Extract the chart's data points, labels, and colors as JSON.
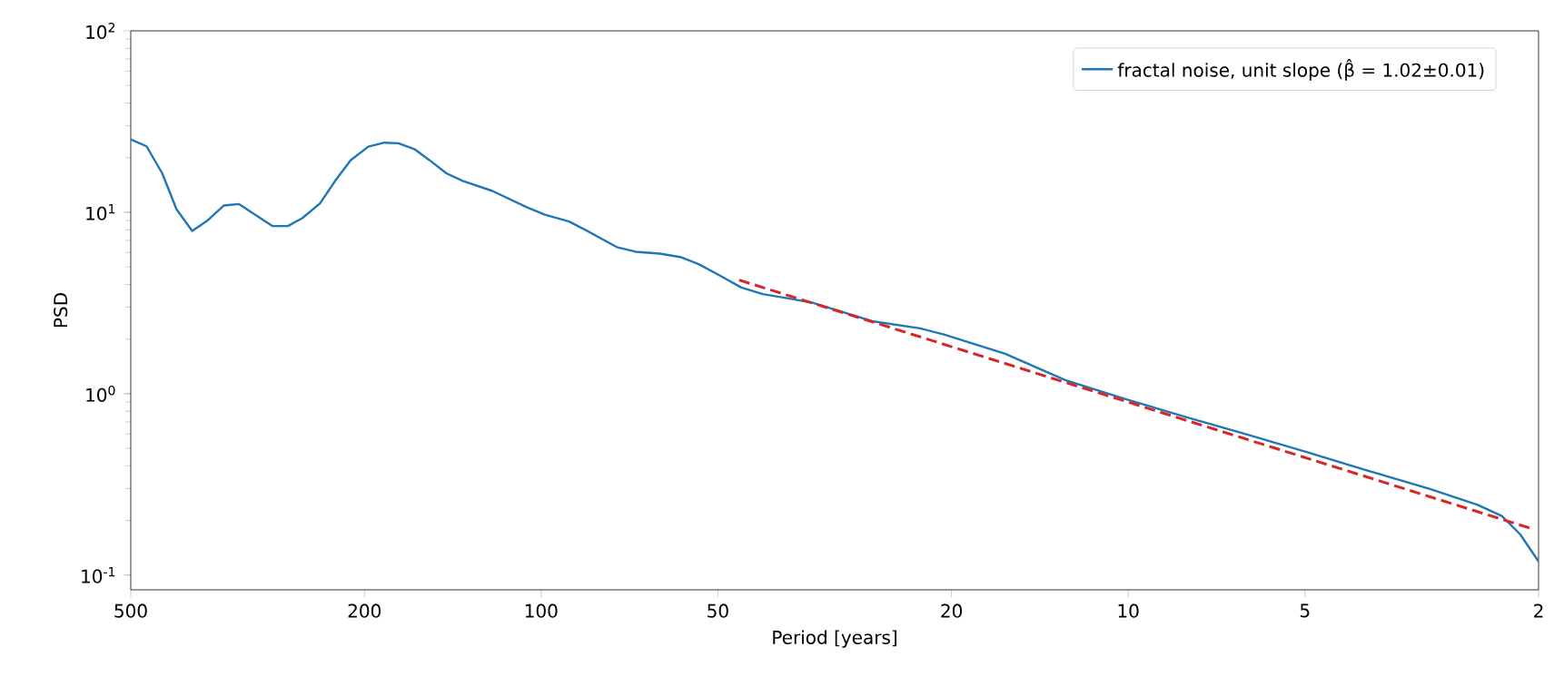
{
  "chart_data": {
    "type": "line",
    "xlabel": "Period [years]",
    "ylabel": "PSD",
    "xlim": [
      500,
      2
    ],
    "ylim": [
      0.083,
      100
    ],
    "xticks": [
      500,
      200,
      100,
      50,
      20,
      10,
      5,
      2
    ],
    "yticks": [
      {
        "value": 0.1,
        "label": "10$^{-1}$"
      },
      {
        "value": 1,
        "label": "10$^{0}$"
      },
      {
        "value": 10,
        "label": "10$^{1}$"
      },
      {
        "value": 100,
        "label": "10$^{2}$"
      }
    ],
    "log": "xy",
    "grid": false,
    "legend": "top right",
    "marker": "none",
    "series": [
      {
        "name": "fractal noise, unit slope (β̂ = 1.02±0.01)",
        "color": "#1f77b4",
        "line_style": "solid",
        "x": [
          500,
          470,
          442,
          418,
          393,
          371,
          347,
          327,
          287,
          270,
          255,
          238,
          224,
          211,
          197,
          185,
          175,
          164,
          155,
          145,
          136,
          121,
          106,
          98.5,
          89.6,
          83.5,
          74.1,
          69.0,
          62.8,
          57.7,
          53.8,
          49.5,
          45.6,
          41.9,
          38.1,
          34.6,
          27.3,
          22.6,
          20.6,
          16.2,
          12.8,
          10.1,
          7.95,
          6.27,
          4.94,
          3.9,
          3.07,
          2.54,
          2.31,
          2.15,
          2
        ],
        "values": [
          25.2,
          23.1,
          16.4,
          10.4,
          7.9,
          8.95,
          10.9,
          11.1,
          8.4,
          8.4,
          9.3,
          11.2,
          15.0,
          19.4,
          23.0,
          24.2,
          24.0,
          22.2,
          19.4,
          16.4,
          14.9,
          13.1,
          10.7,
          9.7,
          8.9,
          7.9,
          6.4,
          6.06,
          5.92,
          5.65,
          5.16,
          4.46,
          3.85,
          3.54,
          3.36,
          3.18,
          2.51,
          2.29,
          2.12,
          1.66,
          1.19,
          0.933,
          0.741,
          0.596,
          0.474,
          0.376,
          0.299,
          0.244,
          0.212,
          0.168,
          0.119
        ]
      },
      {
        "type": "line",
        "color": "#d62728",
        "line_style": "dashed",
        "x": [
          46.0,
          2.05
        ],
        "values": [
          4.23,
          0.18
        ]
      }
    ]
  }
}
